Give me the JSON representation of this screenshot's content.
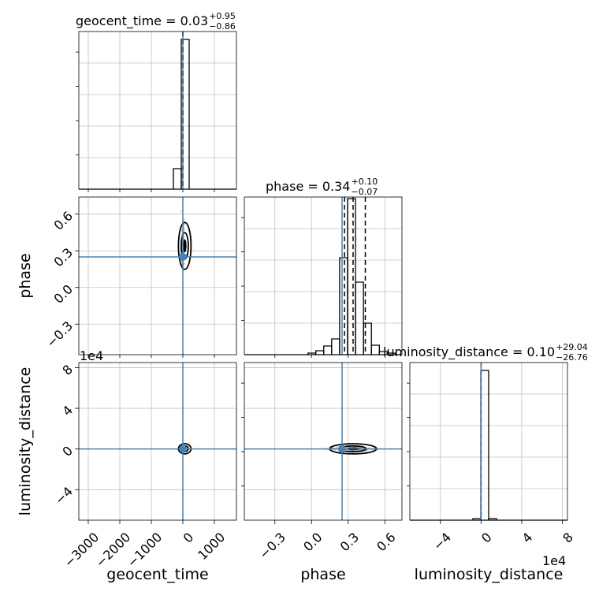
{
  "chart_data": {
    "type": "corner",
    "parameters": [
      "geocent_time",
      "phase",
      "luminosity_distance"
    ],
    "truths": {
      "geocent_time": 0,
      "phase": 0.25,
      "luminosity_distance": 0
    },
    "colors": {
      "truth": "#4682b4",
      "hist": "#000000",
      "grid": "#c0c0c0",
      "samples": "#9a9a9a"
    },
    "grid": true,
    "titles": [
      {
        "param": "geocent_time",
        "main": "geocent_time = 0.03",
        "plus": "+0.95",
        "minus": "−0.86"
      },
      {
        "param": "phase",
        "main": "phase = 0.34",
        "plus": "+0.10",
        "minus": "−0.07"
      },
      {
        "param": "luminosity_distance",
        "main": "luminosity_distance = 0.10",
        "plus": "+29.04",
        "minus": "−26.76"
      }
    ],
    "axis_labels": {
      "x": [
        "geocent_time",
        "phase",
        "luminosity_distance"
      ],
      "y": [
        "phase",
        "luminosity_distance"
      ]
    },
    "offset_text": "1e4",
    "ranges": {
      "geocent_time": [
        -3300,
        1700
      ],
      "phase": [
        -0.55,
        0.74
      ],
      "luminosity_distance": [
        -7,
        8.5
      ]
    },
    "ticks": {
      "geocent_time": [
        {
          "v": -3000,
          "label": "−3000"
        },
        {
          "v": -2000,
          "label": "−2000"
        },
        {
          "v": -1000,
          "label": "−1000"
        },
        {
          "v": 0,
          "label": "0"
        },
        {
          "v": 1000,
          "label": "1000"
        }
      ],
      "phase": [
        {
          "v": -0.3,
          "label": "−0.3"
        },
        {
          "v": 0.0,
          "label": "0.0"
        },
        {
          "v": 0.3,
          "label": "0.3"
        },
        {
          "v": 0.6,
          "label": "0.6"
        }
      ],
      "luminosity_distance": [
        {
          "v": -4,
          "label": "−4"
        },
        {
          "v": 0,
          "label": "0"
        },
        {
          "v": 4,
          "label": "4"
        },
        {
          "v": 8,
          "label": "8"
        }
      ]
    },
    "hist_geocent_time": {
      "edges": [
        -3300,
        -3050,
        -2800,
        -2550,
        -2300,
        -2050,
        -1800,
        -1550,
        -1300,
        -1050,
        -800,
        -550,
        -300,
        -50,
        200,
        450,
        700,
        950,
        1200,
        1450,
        1700
      ],
      "counts": [
        0,
        0,
        0,
        0,
        0,
        0,
        0,
        0,
        0,
        0,
        0,
        0,
        0.13,
        0.95,
        0,
        0,
        0,
        0,
        0,
        0
      ],
      "quantiles": [
        -0.83,
        0.03,
        0.98
      ]
    },
    "hist_phase": {
      "edges": [
        -0.55,
        -0.485,
        -0.42,
        -0.355,
        -0.29,
        -0.225,
        -0.16,
        -0.095,
        -0.03,
        0.035,
        0.1,
        0.165,
        0.23,
        0.295,
        0.36,
        0.425,
        0.49,
        0.555,
        0.62,
        0.685,
        0.74
      ],
      "counts": [
        0,
        0,
        0,
        0,
        0,
        0,
        0,
        0,
        0.01,
        0.025,
        0.055,
        0.1,
        0.615,
        0.99,
        0.46,
        0.2,
        0.06,
        0.02,
        0.01,
        0
      ],
      "quantiles": [
        0.27,
        0.34,
        0.44
      ]
    },
    "hist_luminosity_distance": {
      "edges": [
        -7,
        -6.225,
        -5.45,
        -4.675,
        -3.9,
        -3.125,
        -2.35,
        -1.575,
        -0.8,
        -0.025,
        0.75,
        1.525,
        2.3,
        3.075,
        3.85,
        4.625,
        5.4,
        6.175,
        6.95,
        7.725,
        8.5
      ],
      "counts": [
        0,
        0,
        0,
        0,
        0,
        0,
        0,
        0,
        0.01,
        0.95,
        0.01,
        0,
        0,
        0,
        0,
        0,
        0,
        0,
        0,
        0
      ],
      "quantiles": [
        -0.0027,
        1e-05,
        0.0029
      ]
    },
    "median": {
      "geocent_time": 0.03,
      "phase": 0.34,
      "luminosity_distance": 0.1
    }
  }
}
